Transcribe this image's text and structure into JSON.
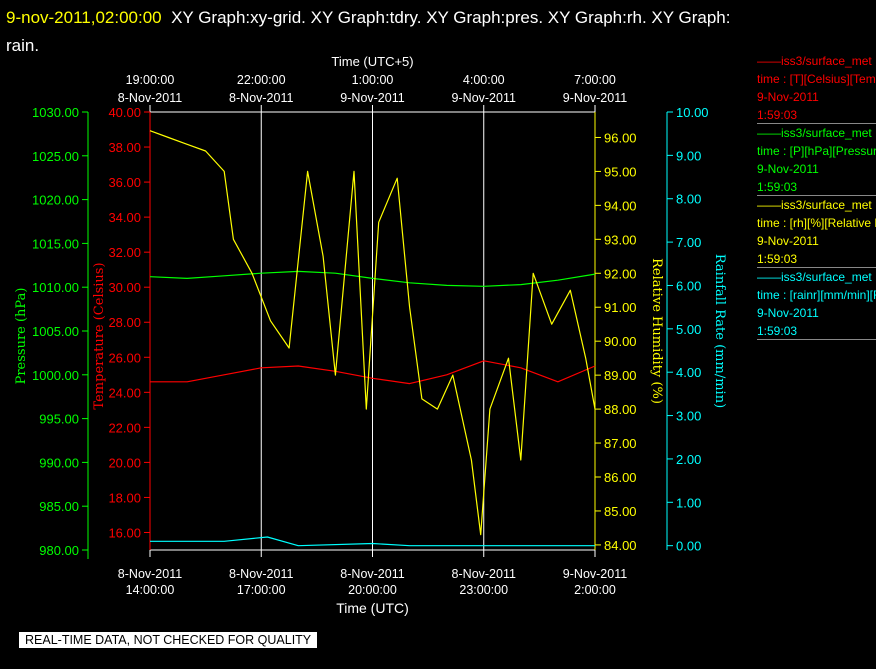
{
  "header": {
    "timestamp": "9-nov-2011,02:00:00",
    "titles": "XY Graph:xy-grid.  XY Graph:tdry.  XY Graph:pres.  XY Graph:rh.  XY Graph:",
    "titles_wrap": "rain."
  },
  "notice": "REAL-TIME DATA, NOT CHECKED FOR QUALITY",
  "colors": {
    "pressure": "#00ff00",
    "temperature": "#ff0000",
    "humidity": "#ffff00",
    "rain": "#00ffff",
    "grid": "#ffffff"
  },
  "legend": [
    {
      "id": "temperature",
      "source": "——iss3/surface_met",
      "field": "time : [T][Celsius][Temperature]",
      "date": "9-Nov-2011",
      "time": "1:59:03"
    },
    {
      "id": "pressure",
      "source": "——iss3/surface_met",
      "field": "time : [P][hPa][Pressure]",
      "date": "9-Nov-2011",
      "time": "1:59:03"
    },
    {
      "id": "humidity",
      "source": "——iss3/surface_met",
      "field": "time : [rh][%][Relative Humidity]",
      "date": "9-Nov-2011",
      "time": "1:59:03"
    },
    {
      "id": "rain",
      "source": "——iss3/surface_met",
      "field": "time : [rainr][mm/min][Rainfall Rate]",
      "date": "9-Nov-2011",
      "time": "1:59:03"
    }
  ],
  "chart_data": {
    "type": "line",
    "grid": "vertical lines at 17:00, 20:00, 23:00",
    "x_bottom": {
      "label": "Time (UTC)",
      "range": [
        "8-Nov-2011 14:00:00",
        "9-Nov-2011 2:00:00"
      ],
      "ticks": [
        {
          "date": "8-Nov-2011",
          "time": "14:00:00"
        },
        {
          "date": "8-Nov-2011",
          "time": "17:00:00"
        },
        {
          "date": "8-Nov-2011",
          "time": "20:00:00"
        },
        {
          "date": "8-Nov-2011",
          "time": "23:00:00"
        },
        {
          "date": "9-Nov-2011",
          "time": "2:00:00"
        }
      ]
    },
    "x_top": {
      "label": "Time (UTC+5)",
      "ticks": [
        {
          "time": "19:00:00",
          "date": "8-Nov-2011"
        },
        {
          "time": "22:00:00",
          "date": "8-Nov-2011"
        },
        {
          "time": "1:00:00",
          "date": "9-Nov-2011"
        },
        {
          "time": "4:00:00",
          "date": "9-Nov-2011"
        },
        {
          "time": "7:00:00",
          "date": "9-Nov-2011"
        }
      ]
    },
    "y_axes": [
      {
        "id": "pressure",
        "label": "Pressure (hPa)",
        "range": [
          980,
          1030
        ],
        "ticks": [
          "980.00",
          "985.00",
          "990.00",
          "995.00",
          "1000.00",
          "1005.00",
          "1010.00",
          "1015.00",
          "1020.00",
          "1025.00",
          "1030.00"
        ]
      },
      {
        "id": "temperature",
        "label": "Temperature (Celsius)",
        "range": [
          15,
          40
        ],
        "ticks": [
          "16.00",
          "18.00",
          "20.00",
          "22.00",
          "24.00",
          "26.00",
          "28.00",
          "30.00",
          "32.00",
          "34.00",
          "36.00",
          "38.00",
          "40.00"
        ]
      },
      {
        "id": "humidity",
        "label": "Relative Humidity (%)",
        "range": [
          83.85,
          96.75
        ],
        "ticks": [
          "84.00",
          "85.00",
          "86.00",
          "87.00",
          "88.00",
          "89.00",
          "90.00",
          "91.00",
          "92.00",
          "93.00",
          "94.00",
          "95.00",
          "96.00"
        ]
      },
      {
        "id": "rain",
        "label": "Rainfall Rate (mm/min)",
        "range": [
          -0.1,
          10
        ],
        "ticks": [
          "0.00",
          "1.00",
          "2.00",
          "3.00",
          "4.00",
          "5.00",
          "6.00",
          "7.00",
          "8.00",
          "9.00",
          "10.00"
        ]
      }
    ],
    "series": [
      {
        "name": "time : [T][Celsius][Temperature]",
        "axis": "temperature",
        "x": [
          "8-Nov-2011 14:00",
          "8-Nov-2011 15:00",
          "8-Nov-2011 16:00",
          "8-Nov-2011 17:00",
          "8-Nov-2011 18:00",
          "8-Nov-2011 19:00",
          "8-Nov-2011 20:00",
          "8-Nov-2011 21:00",
          "8-Nov-2011 22:00",
          "8-Nov-2011 23:00",
          "9-Nov-2011 00:00",
          "9-Nov-2011 01:00",
          "9-Nov-2011 02:00"
        ],
        "values": [
          24.6,
          24.6,
          25.0,
          25.4,
          25.5,
          25.2,
          24.8,
          24.5,
          25.0,
          25.8,
          25.4,
          24.6,
          25.5
        ]
      },
      {
        "name": "time : [P][hPa][Pressure]",
        "axis": "pressure",
        "x": [
          "8-Nov-2011 14:00",
          "8-Nov-2011 15:00",
          "8-Nov-2011 16:00",
          "8-Nov-2011 17:00",
          "8-Nov-2011 18:00",
          "8-Nov-2011 19:00",
          "8-Nov-2011 20:00",
          "8-Nov-2011 21:00",
          "8-Nov-2011 22:00",
          "8-Nov-2011 23:00",
          "9-Nov-2011 00:00",
          "9-Nov-2011 01:00",
          "9-Nov-2011 02:00"
        ],
        "values": [
          1011.2,
          1011.0,
          1011.3,
          1011.6,
          1011.8,
          1011.6,
          1011.0,
          1010.5,
          1010.2,
          1010.1,
          1010.3,
          1010.8,
          1011.5
        ]
      },
      {
        "name": "time : [rh][%][Relative Humidity]",
        "axis": "humidity",
        "x": [
          "8-Nov-2011 14:00",
          "8-Nov-2011 14:30",
          "8-Nov-2011 15:00",
          "8-Nov-2011 15:30",
          "8-Nov-2011 16:00",
          "8-Nov-2011 16:15",
          "8-Nov-2011 16:45",
          "8-Nov-2011 17:15",
          "8-Nov-2011 17:45",
          "8-Nov-2011 18:15",
          "8-Nov-2011 18:40",
          "8-Nov-2011 19:00",
          "8-Nov-2011 19:30",
          "8-Nov-2011 19:50",
          "8-Nov-2011 20:10",
          "8-Nov-2011 20:40",
          "8-Nov-2011 21:00",
          "8-Nov-2011 21:20",
          "8-Nov-2011 21:45",
          "8-Nov-2011 22:10",
          "8-Nov-2011 22:40",
          "8-Nov-2011 22:55",
          "8-Nov-2011 23:10",
          "8-Nov-2011 23:40",
          "9-Nov-2011 00:00",
          "9-Nov-2011 00:20",
          "9-Nov-2011 00:50",
          "9-Nov-2011 01:20",
          "9-Nov-2011 01:45",
          "9-Nov-2011 02:00"
        ],
        "values": [
          96.2,
          96.0,
          95.8,
          95.6,
          95.0,
          93.0,
          92.0,
          90.6,
          89.8,
          95.0,
          92.5,
          89.0,
          95.0,
          88.0,
          93.5,
          94.8,
          91.0,
          88.3,
          88.0,
          89.0,
          86.5,
          84.3,
          88.0,
          89.5,
          86.5,
          92.0,
          90.5,
          91.5,
          89.5,
          88.0
        ]
      },
      {
        "name": "time : [rainr][mm/min][Rainfall Rate]",
        "axis": "rain",
        "x": [
          "8-Nov-2011 14:00",
          "8-Nov-2011 16:00",
          "8-Nov-2011 17:10",
          "8-Nov-2011 18:00",
          "8-Nov-2011 20:00",
          "8-Nov-2011 21:00",
          "8-Nov-2011 23:00",
          "9-Nov-2011 02:00"
        ],
        "values": [
          0.1,
          0.1,
          0.2,
          0.0,
          0.05,
          0.0,
          0.0,
          0.0
        ]
      }
    ]
  }
}
